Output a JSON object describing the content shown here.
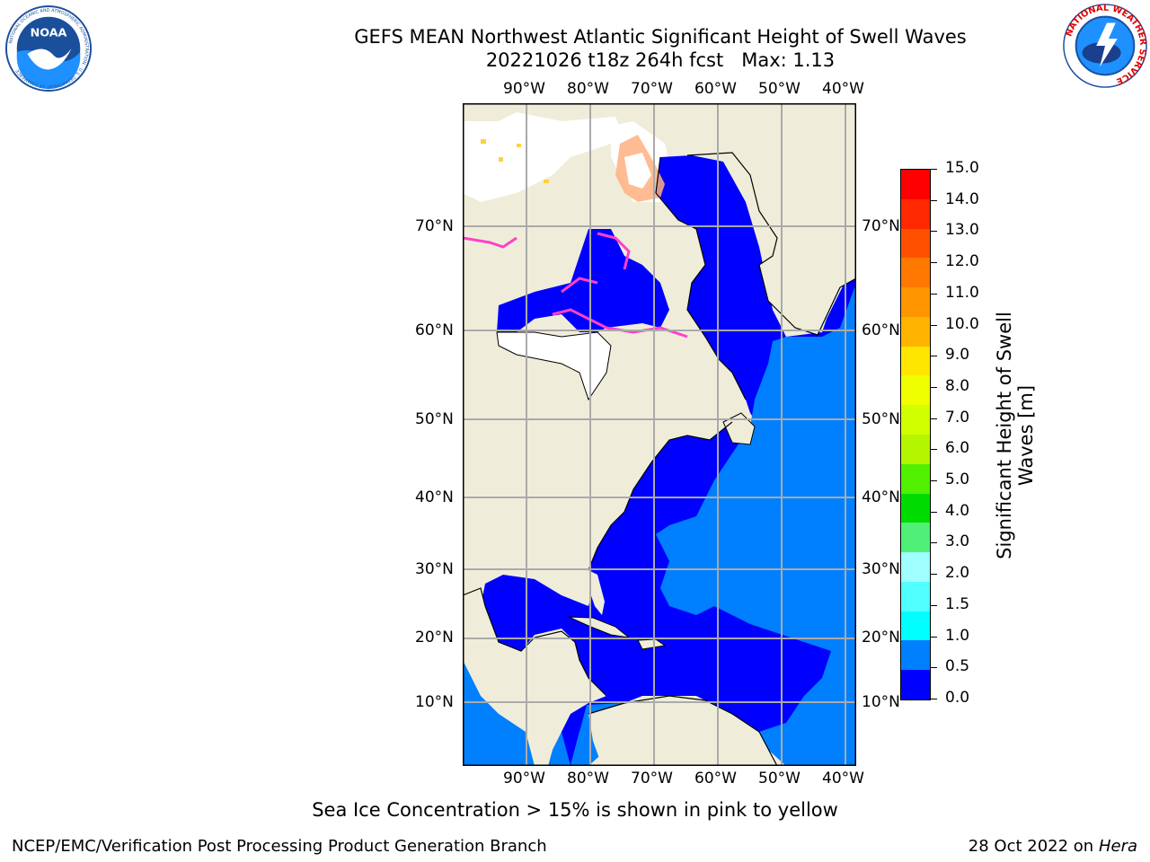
{
  "title": {
    "line1": "GEFS MEAN Northwest Atlantic Significant Height of Swell Waves",
    "line2": "20221026 t18z 264h fcst   Max: 1.13"
  },
  "logos": {
    "noaa": {
      "text": "NOAA",
      "ring_text": "NATIONAL OCEANIC AND ATMOSPHERIC ADMINISTRATION · U.S. DEPARTMENT OF COMMERCE"
    },
    "nws": {
      "ring_text": "NATIONAL WEATHER SERVICE"
    }
  },
  "map": {
    "lon_labels": [
      "90°W",
      "80°W",
      "70°W",
      "60°W",
      "50°W",
      "40°W"
    ],
    "lat_labels": [
      "70°N",
      "60°N",
      "50°N",
      "40°N",
      "30°N",
      "20°N",
      "10°N"
    ],
    "colors": {
      "land": "#efedda",
      "ocean_low": "#0000ff",
      "ocean_mid": "#0080ff",
      "ice": "#ff40c8",
      "grid": "#aaaaaa",
      "no_data": "#ffffff"
    }
  },
  "colorbar": {
    "title": "Significant Height of Swell Waves [m]",
    "ticks": [
      "15.0",
      "14.0",
      "13.0",
      "12.0",
      "11.0",
      "10.0",
      "9.0",
      "8.0",
      "7.0",
      "6.0",
      "5.0",
      "4.0",
      "3.0",
      "2.0",
      "1.5",
      "1.0",
      "0.5",
      "0.0"
    ],
    "colors": [
      "#ff0000",
      "#ff2800",
      "#ff5000",
      "#ff7800",
      "#ff9600",
      "#ffb400",
      "#ffe600",
      "#f0ff00",
      "#d2ff00",
      "#b4f500",
      "#50f000",
      "#00dc00",
      "#50f078",
      "#a0ffff",
      "#50ffff",
      "#00ffff",
      "#0080ff",
      "#0000ff"
    ]
  },
  "note": "Sea Ice Concentration > 15% is shown in pink to yellow",
  "footer": {
    "left": "NCEP/EMC/Verification Post Processing Product Generation Branch",
    "right_prefix": "28 Oct 2022 on ",
    "right_machine": "Hera"
  }
}
